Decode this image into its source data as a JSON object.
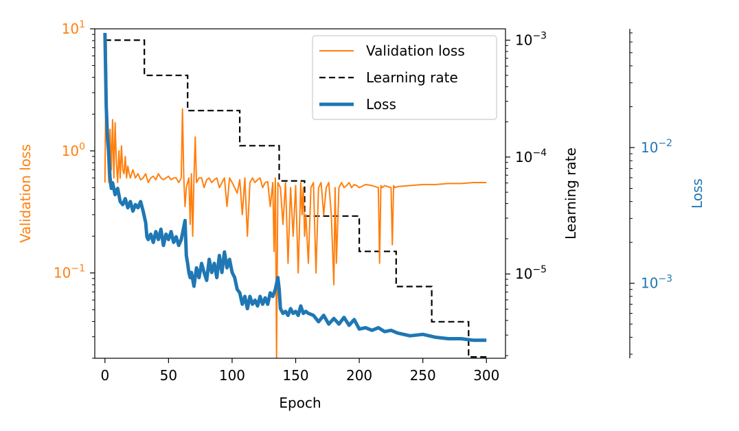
{
  "chart_data": {
    "type": "line",
    "xlabel": "Epoch",
    "x_ticks": [
      0,
      50,
      100,
      150,
      200,
      250,
      300
    ],
    "x_tick_labels": [
      "0",
      "50",
      "100",
      "150",
      "200",
      "250",
      "300"
    ],
    "xlim": [
      -8,
      315
    ],
    "axes": {
      "validation": {
        "label": "Validation loss",
        "scale": "log",
        "ylim": [
          0.02,
          10
        ],
        "ticks": [
          {
            "value": 10,
            "mantissa": "10",
            "exponent": "1"
          },
          {
            "value": 1,
            "mantissa": "10",
            "exponent": "0"
          },
          {
            "value": 0.1,
            "mantissa": "10",
            "exponent": "−1"
          }
        ]
      },
      "learning_rate": {
        "label": "Learning rate",
        "scale": "log",
        "ylim": [
          1.9e-06,
          0.00125
        ],
        "ticks": [
          {
            "value": 0.001,
            "mantissa": "10",
            "exponent": "−3"
          },
          {
            "value": 0.0001,
            "mantissa": "10",
            "exponent": "−4"
          },
          {
            "value": 1e-05,
            "mantissa": "10",
            "exponent": "−5"
          }
        ]
      },
      "loss": {
        "label": "Loss",
        "scale": "log",
        "ylim": [
          0.00028,
          0.075
        ],
        "ticks": [
          {
            "value": 0.01,
            "mantissa": "10",
            "exponent": "−2"
          },
          {
            "value": 0.001,
            "mantissa": "10",
            "exponent": "−3"
          }
        ]
      }
    },
    "legend": {
      "position": "upper right",
      "entries": [
        {
          "label": "Validation loss",
          "style": "solid",
          "color": "#ff7f0e"
        },
        {
          "label": "Learning rate",
          "style": "dashed",
          "color": "#000000"
        },
        {
          "label": "Loss",
          "style": "solid-thick",
          "color": "#1f77b4"
        }
      ]
    },
    "series": [
      {
        "name": "Learning rate",
        "axis": "learning_rate",
        "color": "#000000",
        "style": "dashed",
        "steps": [
          {
            "x_start": 0,
            "x_end": 31,
            "value": 0.001
          },
          {
            "x_start": 31,
            "x_end": 65,
            "value": 0.0005
          },
          {
            "x_start": 65,
            "x_end": 106,
            "value": 0.00025
          },
          {
            "x_start": 106,
            "x_end": 137,
            "value": 0.000125
          },
          {
            "x_start": 137,
            "x_end": 157,
            "value": 6.25e-05
          },
          {
            "x_start": 157,
            "x_end": 200,
            "value": 3.13e-05
          },
          {
            "x_start": 200,
            "x_end": 229,
            "value": 1.56e-05
          },
          {
            "x_start": 229,
            "x_end": 257,
            "value": 7.8e-06
          },
          {
            "x_start": 257,
            "x_end": 286,
            "value": 3.9e-06
          },
          {
            "x_start": 286,
            "x_end": 300,
            "value": 1.95e-06
          }
        ]
      },
      {
        "name": "Validation loss",
        "axis": "validation",
        "color": "#ff7f0e",
        "x": [
          0,
          1,
          2,
          3,
          4,
          5,
          6,
          7,
          8,
          9,
          10,
          11,
          12,
          13,
          14,
          15,
          16,
          17,
          18,
          19,
          20,
          22,
          24,
          26,
          28,
          30,
          32,
          34,
          36,
          38,
          40,
          42,
          44,
          46,
          48,
          50,
          52,
          54,
          56,
          58,
          60,
          61,
          62,
          63,
          64,
          65,
          66,
          67,
          68,
          69,
          70,
          71,
          72,
          74,
          76,
          78,
          80,
          82,
          84,
          86,
          88,
          90,
          92,
          94,
          96,
          98,
          100,
          102,
          104,
          106,
          108,
          110,
          112,
          114,
          116,
          118,
          120,
          122,
          124,
          126,
          128,
          130,
          132,
          133,
          134,
          135,
          136,
          138,
          140,
          142,
          144,
          146,
          148,
          150,
          152,
          154,
          155,
          156,
          157,
          158,
          160,
          162,
          164,
          166,
          168,
          170,
          172,
          174,
          176,
          178,
          180,
          181,
          182,
          184,
          186,
          188,
          190,
          192,
          194,
          196,
          198,
          200,
          205,
          210,
          215,
          216,
          217,
          218,
          220,
          225,
          226,
          227,
          228,
          230,
          240,
          250,
          260,
          270,
          280,
          290,
          300
        ],
        "y": [
          0.55,
          8.2,
          1.0,
          0.55,
          1.5,
          0.7,
          1.8,
          0.6,
          1.7,
          0.8,
          0.55,
          1.0,
          0.6,
          1.1,
          0.7,
          0.65,
          0.9,
          0.6,
          0.75,
          0.65,
          0.6,
          0.7,
          0.6,
          0.65,
          0.58,
          0.6,
          0.65,
          0.55,
          0.6,
          0.62,
          0.58,
          0.65,
          0.6,
          0.58,
          0.6,
          0.62,
          0.58,
          0.6,
          0.6,
          0.55,
          0.6,
          2.2,
          0.6,
          0.35,
          0.5,
          0.55,
          0.6,
          0.25,
          0.65,
          0.2,
          0.6,
          1.3,
          0.55,
          0.6,
          0.6,
          0.5,
          0.58,
          0.6,
          0.55,
          0.58,
          0.6,
          0.5,
          0.55,
          0.6,
          0.35,
          0.6,
          0.55,
          0.5,
          0.45,
          0.58,
          0.3,
          0.6,
          0.2,
          0.55,
          0.6,
          0.55,
          0.58,
          0.6,
          0.5,
          0.55,
          0.56,
          0.35,
          0.55,
          0.15,
          0.6,
          0.02,
          0.55,
          0.5,
          0.25,
          0.55,
          0.12,
          0.5,
          0.2,
          0.52,
          0.1,
          0.55,
          0.3,
          0.5,
          0.2,
          0.3,
          0.12,
          0.5,
          0.55,
          0.1,
          0.5,
          0.55,
          0.3,
          0.5,
          0.55,
          0.3,
          0.08,
          0.5,
          0.12,
          0.5,
          0.55,
          0.5,
          0.52,
          0.55,
          0.5,
          0.53,
          0.52,
          0.5,
          0.53,
          0.52,
          0.5,
          0.12,
          0.52,
          0.5,
          0.52,
          0.5,
          0.17,
          0.52,
          0.5,
          0.51,
          0.52,
          0.53,
          0.53,
          0.54,
          0.54,
          0.55,
          0.55
        ]
      },
      {
        "name": "Loss",
        "axis": "loss",
        "color": "#1f77b4",
        "style": "thick",
        "x": [
          0,
          1,
          2,
          3,
          4,
          5,
          6,
          8,
          10,
          12,
          14,
          16,
          18,
          20,
          22,
          24,
          26,
          28,
          30,
          32,
          33,
          34,
          36,
          38,
          40,
          42,
          44,
          46,
          48,
          50,
          52,
          54,
          56,
          58,
          60,
          62,
          63,
          64,
          65,
          66,
          67,
          68,
          70,
          72,
          74,
          76,
          78,
          80,
          82,
          84,
          86,
          88,
          90,
          92,
          94,
          96,
          98,
          100,
          102,
          104,
          106,
          108,
          110,
          112,
          114,
          116,
          118,
          120,
          122,
          124,
          126,
          128,
          130,
          132,
          134,
          136,
          137,
          138,
          140,
          142,
          144,
          146,
          148,
          150,
          152,
          154,
          156,
          158,
          160,
          164,
          168,
          172,
          176,
          180,
          184,
          188,
          192,
          196,
          200,
          205,
          210,
          215,
          220,
          225,
          230,
          240,
          250,
          260,
          270,
          280,
          290,
          300
        ],
        "y": [
          0.07,
          0.02,
          0.012,
          0.009,
          0.006,
          0.005,
          0.0055,
          0.0045,
          0.005,
          0.004,
          0.0038,
          0.0042,
          0.0036,
          0.004,
          0.0034,
          0.0038,
          0.0036,
          0.004,
          0.0034,
          0.0028,
          0.0022,
          0.0021,
          0.0023,
          0.002,
          0.0024,
          0.0021,
          0.0025,
          0.0019,
          0.0023,
          0.0021,
          0.0024,
          0.002,
          0.0022,
          0.0019,
          0.0021,
          0.0026,
          0.0029,
          0.0016,
          0.0014,
          0.0012,
          0.0011,
          0.0012,
          0.00095,
          0.0013,
          0.0011,
          0.0014,
          0.0012,
          0.00105,
          0.0015,
          0.0012,
          0.0014,
          0.0011,
          0.0016,
          0.0012,
          0.0017,
          0.0013,
          0.0015,
          0.0012,
          0.0011,
          0.0009,
          0.00085,
          0.0007,
          0.0008,
          0.00065,
          0.0008,
          0.0007,
          0.00075,
          0.00068,
          0.0008,
          0.0007,
          0.00078,
          0.0007,
          0.00085,
          0.0008,
          0.0009,
          0.0011,
          0.0009,
          0.00065,
          0.0006,
          0.00062,
          0.00058,
          0.00065,
          0.0006,
          0.00062,
          0.00058,
          0.00068,
          0.0006,
          0.00062,
          0.0006,
          0.00058,
          0.00052,
          0.00058,
          0.0005,
          0.00055,
          0.0005,
          0.00056,
          0.00049,
          0.00054,
          0.00046,
          0.00047,
          0.00045,
          0.00047,
          0.00044,
          0.00045,
          0.00043,
          0.00041,
          0.00042,
          0.0004,
          0.00039,
          0.00039,
          0.00038,
          0.00038
        ]
      }
    ]
  }
}
